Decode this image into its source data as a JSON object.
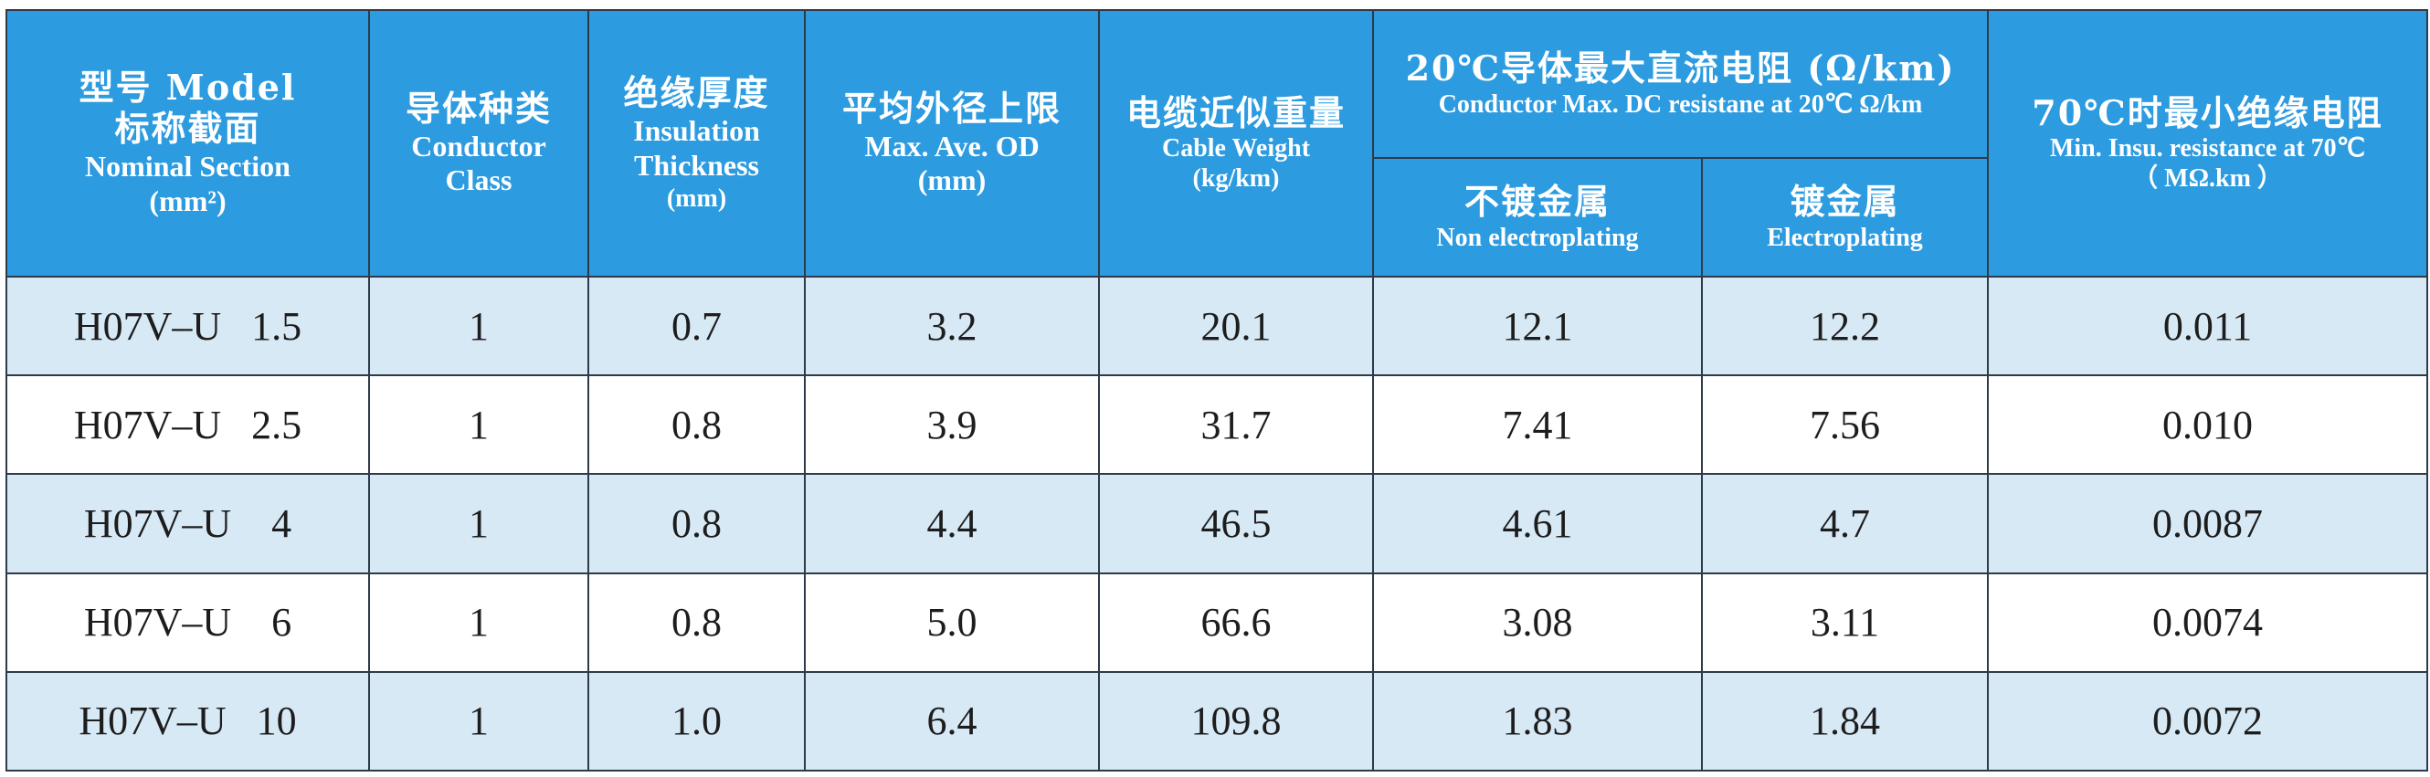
{
  "table": {
    "headers": {
      "model": {
        "zh_en": "型号 Model",
        "zh2": "标称截面",
        "en": "Nominal Section",
        "unit": "(mm²)"
      },
      "conductor_class": {
        "zh": "导体种类",
        "en1": "Conductor",
        "en2": "Class"
      },
      "insulation": {
        "zh": "绝缘厚度",
        "en1": "Insulation",
        "en2": "Thickness",
        "unit": "(mm)"
      },
      "od": {
        "zh": "平均外径上限",
        "en": "Max. Ave. OD",
        "unit": "(mm)"
      },
      "weight": {
        "zh": "电缆近似重量",
        "en": "Cable  Weight",
        "unit": "(kg/km)"
      },
      "resistance": {
        "zh": "20℃导体最大直流电阻 (Ω/km)",
        "en": "Conductor Max. DC resistane at 20℃ Ω/km",
        "non_plating": {
          "zh": "不镀金属",
          "en": "Non electroplating"
        },
        "plating": {
          "zh": "镀金属",
          "en": "Electroplating"
        }
      },
      "insu_resistance": {
        "zh": "70℃时最小绝缘电阻",
        "en": "Min. Insu. resistance at 70℃",
        "unit": "（ MΩ.km ）"
      }
    },
    "rows": [
      {
        "model": "H07V–U   1.5",
        "class": "1",
        "insulation": "0.7",
        "od": "3.2",
        "weight": "20.1",
        "r_non": "12.1",
        "r_plated": "12.2",
        "insu": "0.011"
      },
      {
        "model": "H07V–U   2.5",
        "class": "1",
        "insulation": "0.8",
        "od": "3.9",
        "weight": "31.7",
        "r_non": "7.41",
        "r_plated": "7.56",
        "insu": "0.010"
      },
      {
        "model": "H07V–U    4",
        "class": "1",
        "insulation": "0.8",
        "od": "4.4",
        "weight": "46.5",
        "r_non": "4.61",
        "r_plated": "4.7",
        "insu": "0.0087"
      },
      {
        "model": "H07V–U    6",
        "class": "1",
        "insulation": "0.8",
        "od": "5.0",
        "weight": "66.6",
        "r_non": "3.08",
        "r_plated": "3.11",
        "insu": "0.0074"
      },
      {
        "model": "H07V–U   10",
        "class": "1",
        "insulation": "1.0",
        "od": "6.4",
        "weight": "109.8",
        "r_non": "1.83",
        "r_plated": "1.84",
        "insu": "0.0072"
      }
    ]
  },
  "colors": {
    "header_bg": "#2c9be0",
    "band_bg": "#d8e9f6",
    "border": "#2e3a48"
  }
}
